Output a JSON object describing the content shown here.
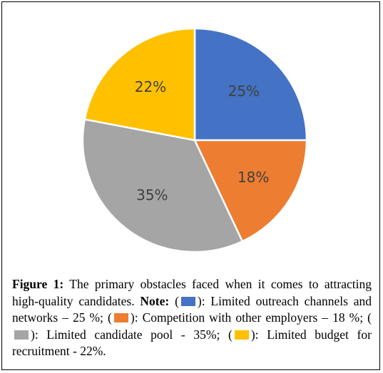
{
  "chart_data": {
    "type": "pie",
    "title": "",
    "slices": [
      {
        "label": "Limited outreach channels and networks",
        "value": 25,
        "display": "25%",
        "color": "#4472C4"
      },
      {
        "label": "Competition with other employers",
        "value": 18,
        "display": "18%",
        "color": "#ED7D31"
      },
      {
        "label": "Limited candidate pool",
        "value": 35,
        "display": "35%",
        "color": "#A5A5A5"
      },
      {
        "label": "Limited budget for recruitment",
        "value": 22,
        "display": "22%",
        "color": "#FFC000"
      }
    ]
  },
  "caption": {
    "figure_label": "Figure 1:",
    "text1": "The primary obstacles faced when it comes to attracting high-quality candidates.",
    "note_label": "Note:",
    "open1": "(",
    "item1": "): Limited outreach channels and networks – 25 %; (",
    "item2": "): Competition with other employers – 18 %; (",
    "item3": "): Limited candidate pool - 35%; (",
    "item4": "): Limited budget for recruitment - 22%."
  }
}
